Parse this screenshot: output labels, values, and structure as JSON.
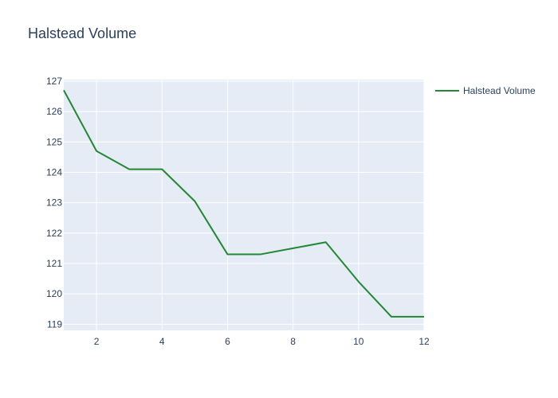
{
  "chart_data": {
    "type": "line",
    "title": "Halstead Volume",
    "xlabel": "",
    "ylabel": "",
    "xlim": [
      1,
      12
    ],
    "ylim": [
      118.8,
      127.05
    ],
    "x_ticks": [
      "2",
      "4",
      "6",
      "8",
      "10",
      "12"
    ],
    "y_ticks": [
      "119",
      "120",
      "121",
      "122",
      "123",
      "124",
      "125",
      "126",
      "127"
    ],
    "grid": true,
    "legend_placement": "top-right",
    "series": [
      {
        "name": "Halstead Volume",
        "color": "#228833",
        "x": [
          1,
          2,
          3,
          4,
          5,
          6,
          7,
          8,
          9,
          10,
          11,
          12
        ],
        "y": [
          126.7,
          124.7,
          124.1,
          124.1,
          123.05,
          121.3,
          121.3,
          121.5,
          121.7,
          120.4,
          119.25,
          119.25
        ]
      }
    ]
  },
  "colors": {
    "plot_background": "#e5ecf6",
    "grid": "#ffffff",
    "text": "#2a3f5f"
  }
}
